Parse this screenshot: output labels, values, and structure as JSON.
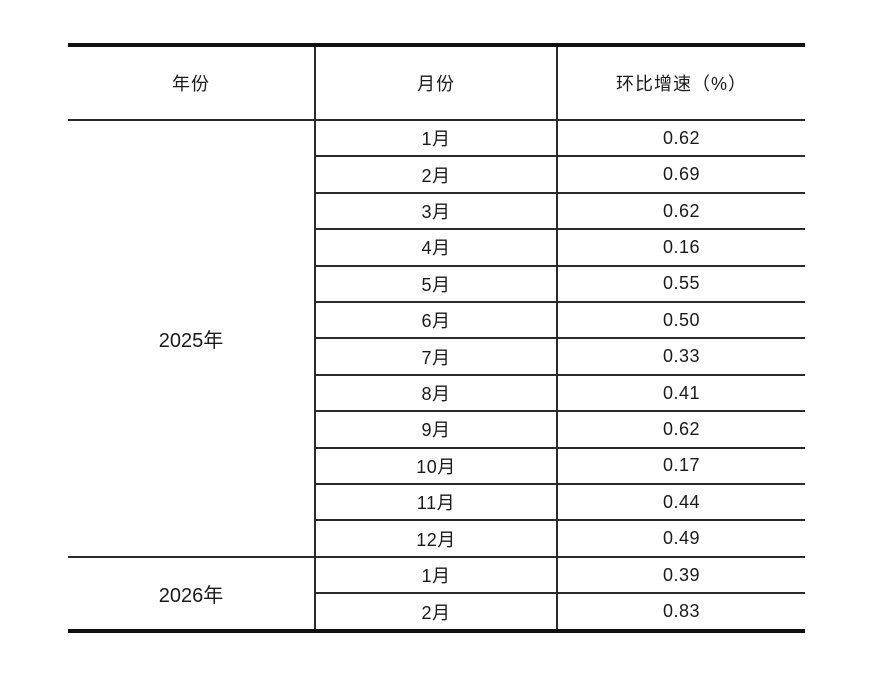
{
  "table": {
    "columns": [
      {
        "label": "年份"
      },
      {
        "label": "月份"
      },
      {
        "label": "环比增速（%）"
      }
    ],
    "groups": [
      {
        "year": "2025年",
        "rows": [
          {
            "month": "1月",
            "value": "0.62"
          },
          {
            "month": "2月",
            "value": "0.69"
          },
          {
            "month": "3月",
            "value": "0.62"
          },
          {
            "month": "4月",
            "value": "0.16"
          },
          {
            "month": "5月",
            "value": "0.55"
          },
          {
            "month": "6月",
            "value": "0.50"
          },
          {
            "month": "7月",
            "value": "0.33"
          },
          {
            "month": "8月",
            "value": "0.41"
          },
          {
            "month": "9月",
            "value": "0.62"
          },
          {
            "month": "10月",
            "value": "0.17"
          },
          {
            "month": "11月",
            "value": "0.44"
          },
          {
            "month": "12月",
            "value": "0.49"
          }
        ]
      },
      {
        "year": "2026年",
        "rows": [
          {
            "month": "1月",
            "value": "0.39"
          },
          {
            "month": "2月",
            "value": "0.83"
          }
        ]
      }
    ],
    "colors": {
      "border_heavy": "#111111",
      "border_light": "#2b2b2b",
      "text": "#1a1a1a",
      "background": "#ffffff"
    }
  }
}
